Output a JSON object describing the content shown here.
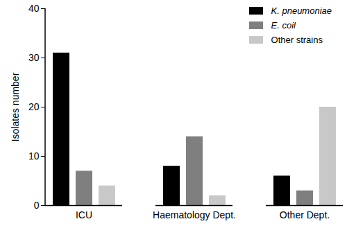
{
  "chart_data": {
    "type": "bar",
    "categories": [
      "ICU",
      "Haematology Dept.",
      "Other Dept."
    ],
    "series": [
      {
        "name": "K. pneumoniae",
        "color": "#000000",
        "values": [
          31,
          8,
          6
        ]
      },
      {
        "name": "E. coil",
        "color": "#7f7f7f",
        "values": [
          7,
          14,
          3
        ]
      },
      {
        "name": "Other strains",
        "color": "#c8c8c8",
        "values": [
          4,
          2,
          20
        ]
      }
    ],
    "y_label": "Isolates number",
    "ylim": [
      0,
      40
    ],
    "yticks": [
      0,
      10,
      20,
      30,
      40
    ],
    "legend": "top-right"
  }
}
